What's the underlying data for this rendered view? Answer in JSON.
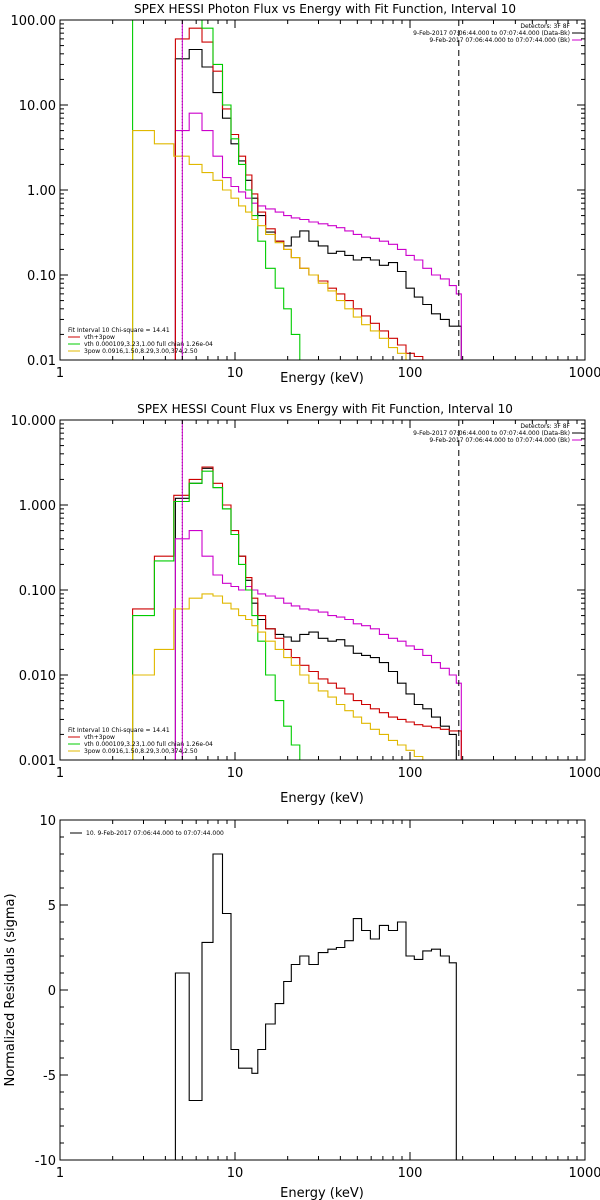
{
  "chart_data": [
    {
      "id": "photon",
      "type": "line",
      "title": "SPEX HESSI Photon Flux vs Energy with Fit Function, Interval 10",
      "xlabel": "Energy (keV)",
      "ylabel": "",
      "xscale": "log",
      "yscale": "log",
      "xlim": [
        1,
        1000
      ],
      "ylim": [
        0.01,
        100
      ],
      "xticks": [
        {
          "v": 1,
          "label": "1"
        },
        {
          "v": 10,
          "label": "10"
        },
        {
          "v": 100,
          "label": "100"
        },
        {
          "v": 1000,
          "label": "1000"
        }
      ],
      "yticks": [
        {
          "v": 0.01,
          "label": "0.01"
        },
        {
          "v": 0.1,
          "label": "0.10"
        },
        {
          "v": 1,
          "label": "1.00"
        },
        {
          "v": 10,
          "label": "10.00"
        },
        {
          "v": 100,
          "label": "100.00"
        }
      ],
      "vlines": [
        {
          "x": 5,
          "style": "dotted",
          "color": "#000000"
        },
        {
          "x": 5,
          "style": "solid",
          "color": "#cc00cc"
        },
        {
          "x": 190,
          "style": "dashed",
          "color": "#000000"
        }
      ],
      "info_top_right": [
        "Detectors: 3F 8F",
        "9-Feb-2017 07:06:44.000 to 07:07:44.000 (Data-Bk)",
        "9-Feb-2017 07:06:44.000 to 07:07:44.000 (Bk)"
      ],
      "info_bottom_left": [
        "Fit Interval 10   Chi-square = 14.41",
        "vth+3pow",
        "vth 0.000109,3.23,1.00  full chian 1.26e-04",
        "3pow 0.0916,1.50,8.29,3.00,374,2.50"
      ],
      "series": [
        {
          "name": "Data-Bk",
          "color": "#000000",
          "x": [
            5,
            6,
            7,
            8,
            9,
            10,
            11,
            12,
            13,
            14,
            16,
            18,
            20,
            22,
            25,
            28,
            32,
            36,
            40,
            45,
            50,
            56,
            63,
            71,
            80,
            90,
            100,
            112,
            125,
            141,
            158,
            178,
            190
          ],
          "y": [
            35,
            45,
            28,
            14,
            7,
            3.5,
            2.2,
            1.3,
            0.8,
            0.5,
            0.32,
            0.25,
            0.22,
            0.28,
            0.33,
            0.25,
            0.22,
            0.18,
            0.19,
            0.17,
            0.15,
            0.16,
            0.15,
            0.13,
            0.14,
            0.11,
            0.07,
            0.055,
            0.045,
            0.035,
            0.03,
            0.025,
            0.025
          ]
        },
        {
          "name": "Bk",
          "color": "#cc00cc",
          "x": [
            5,
            6,
            7,
            8,
            9,
            10,
            11,
            12,
            13,
            14,
            16,
            18,
            20,
            22,
            25,
            28,
            32,
            36,
            40,
            45,
            50,
            56,
            63,
            71,
            80,
            90,
            100,
            112,
            125,
            141,
            158,
            178,
            190
          ],
          "y": [
            5,
            8,
            5,
            2.5,
            1.4,
            1.1,
            0.95,
            0.8,
            0.7,
            0.65,
            0.6,
            0.55,
            0.5,
            0.47,
            0.45,
            0.42,
            0.4,
            0.38,
            0.36,
            0.33,
            0.3,
            0.28,
            0.27,
            0.25,
            0.23,
            0.2,
            0.17,
            0.15,
            0.12,
            0.1,
            0.09,
            0.075,
            0.06
          ]
        },
        {
          "name": "vth+3pow",
          "color": "#cc0000",
          "x": [
            5,
            6,
            7,
            8,
            9,
            10,
            11,
            12,
            13,
            14,
            16,
            18,
            20,
            22,
            25,
            28,
            32,
            36,
            40,
            45,
            50,
            56,
            63,
            71,
            80,
            90,
            100,
            112,
            125,
            141,
            158,
            178,
            190
          ],
          "y": [
            60,
            80,
            55,
            25,
            9,
            4.5,
            2.5,
            1.5,
            0.9,
            0.55,
            0.35,
            0.25,
            0.2,
            0.16,
            0.12,
            0.1,
            0.085,
            0.07,
            0.06,
            0.05,
            0.04,
            0.033,
            0.027,
            0.022,
            0.018,
            0.015,
            0.012,
            0.011,
            0.01,
            0.009,
            0.0085,
            0.008,
            0.008
          ]
        },
        {
          "name": "vth",
          "color": "#00cc00",
          "x": [
            3,
            4,
            5,
            6,
            7,
            8,
            9,
            10,
            11,
            12,
            13,
            14,
            16,
            18,
            20,
            22,
            25,
            28,
            32
          ],
          "y": [
            100,
            100,
            100,
            100,
            80,
            30,
            10,
            4,
            2,
            1,
            0.5,
            0.25,
            0.12,
            0.07,
            0.04,
            0.02,
            0.01,
            0.0095,
            0.009
          ]
        },
        {
          "name": "3pow",
          "color": "#e0b800",
          "x": [
            3,
            4,
            5,
            6,
            7,
            8,
            9,
            10,
            11,
            12,
            13,
            14,
            16,
            18,
            20,
            22,
            25,
            28,
            32,
            36,
            40,
            45,
            50,
            56,
            63,
            71,
            80,
            90,
            100
          ],
          "y": [
            5,
            3.5,
            2.5,
            2,
            1.6,
            1.3,
            1.0,
            0.8,
            0.65,
            0.55,
            0.45,
            0.38,
            0.3,
            0.24,
            0.2,
            0.16,
            0.12,
            0.1,
            0.08,
            0.065,
            0.05,
            0.04,
            0.032,
            0.026,
            0.022,
            0.018,
            0.014,
            0.012,
            0.01
          ]
        }
      ]
    },
    {
      "id": "count",
      "type": "line",
      "title": "SPEX HESSI Count Flux vs Energy with Fit Function, Interval 10",
      "xlabel": "Energy (keV)",
      "ylabel": "",
      "xscale": "log",
      "yscale": "log",
      "xlim": [
        1,
        1000
      ],
      "ylim": [
        0.001,
        10
      ],
      "xticks": [
        {
          "v": 1,
          "label": "1"
        },
        {
          "v": 10,
          "label": "10"
        },
        {
          "v": 100,
          "label": "100"
        },
        {
          "v": 1000,
          "label": "1000"
        }
      ],
      "yticks": [
        {
          "v": 0.001,
          "label": "0.001"
        },
        {
          "v": 0.01,
          "label": "0.010"
        },
        {
          "v": 0.1,
          "label": "0.100"
        },
        {
          "v": 1,
          "label": "1.000"
        },
        {
          "v": 10,
          "label": "10.000"
        }
      ],
      "vlines": [
        {
          "x": 5,
          "style": "dotted",
          "color": "#000000"
        },
        {
          "x": 5,
          "style": "solid",
          "color": "#cc00cc"
        },
        {
          "x": 190,
          "style": "dashed",
          "color": "#000000"
        }
      ],
      "info_top_right": [
        "Detectors: 3F 8F",
        "9-Feb-2017 07:06:44.000 to 07:07:44.000 (Data-Bk)",
        "9-Feb-2017 07:06:44.000 to 07:07:44.000 (Bk)"
      ],
      "info_bottom_left": [
        "Fit Interval 10   Chi-square = 14.41",
        "vth+3pow",
        "vth 0.000109,3.23,1.00  full chian 1.26e-04",
        "3pow 0.0916,1.50,8.29,3.00,374,2.50"
      ],
      "series": [
        {
          "name": "Data-Bk",
          "color": "#000000",
          "x": [
            5,
            6,
            7,
            8,
            9,
            10,
            11,
            12,
            13,
            14,
            16,
            18,
            20,
            22,
            25,
            28,
            32,
            36,
            40,
            45,
            50,
            56,
            63,
            71,
            80,
            90,
            100,
            112,
            125,
            141,
            158,
            178,
            190
          ],
          "y": [
            1.2,
            1.8,
            2.7,
            1.6,
            0.9,
            0.45,
            0.25,
            0.13,
            0.07,
            0.045,
            0.035,
            0.03,
            0.028,
            0.025,
            0.03,
            0.032,
            0.027,
            0.025,
            0.026,
            0.022,
            0.018,
            0.017,
            0.016,
            0.014,
            0.011,
            0.008,
            0.006,
            0.0045,
            0.004,
            0.0032,
            0.0025,
            0.002,
            0.001
          ]
        },
        {
          "name": "Bk",
          "color": "#cc00cc",
          "x": [
            5,
            6,
            7,
            8,
            9,
            10,
            11,
            12,
            13,
            14,
            16,
            18,
            20,
            22,
            25,
            28,
            32,
            36,
            40,
            45,
            50,
            56,
            63,
            71,
            80,
            90,
            100,
            112,
            125,
            141,
            158,
            178,
            190
          ],
          "y": [
            0.4,
            0.5,
            0.25,
            0.15,
            0.12,
            0.11,
            0.1,
            0.11,
            0.1,
            0.09,
            0.085,
            0.08,
            0.07,
            0.065,
            0.06,
            0.058,
            0.055,
            0.05,
            0.048,
            0.045,
            0.04,
            0.038,
            0.035,
            0.03,
            0.027,
            0.025,
            0.022,
            0.02,
            0.017,
            0.014,
            0.012,
            0.01,
            0.008
          ]
        },
        {
          "name": "vth+3pow",
          "color": "#cc0000",
          "x": [
            3,
            4,
            5,
            6,
            7,
            8,
            9,
            10,
            11,
            12,
            13,
            14,
            16,
            18,
            20,
            22,
            25,
            28,
            32,
            36,
            40,
            45,
            50,
            56,
            63,
            71,
            80,
            90,
            100,
            112,
            125,
            141,
            158,
            178,
            190
          ],
          "y": [
            0.06,
            0.25,
            1.3,
            2.0,
            2.8,
            1.8,
            1.0,
            0.5,
            0.25,
            0.14,
            0.08,
            0.05,
            0.035,
            0.027,
            0.02,
            0.016,
            0.013,
            0.011,
            0.009,
            0.008,
            0.007,
            0.006,
            0.005,
            0.0045,
            0.004,
            0.0036,
            0.0032,
            0.003,
            0.0028,
            0.0026,
            0.0025,
            0.0024,
            0.0023,
            0.0022,
            0.0022
          ]
        },
        {
          "name": "vth",
          "color": "#00cc00",
          "x": [
            3,
            4,
            5,
            6,
            7,
            8,
            9,
            10,
            11,
            12,
            13,
            14,
            16,
            18,
            20,
            22,
            25,
            28,
            32
          ],
          "y": [
            0.05,
            0.22,
            1.1,
            1.8,
            2.5,
            1.6,
            0.9,
            0.45,
            0.2,
            0.1,
            0.05,
            0.025,
            0.01,
            0.005,
            0.0025,
            0.0015,
            0.001,
            0.00095,
            0.0009
          ]
        },
        {
          "name": "3pow",
          "color": "#e0b800",
          "x": [
            3,
            4,
            5,
            6,
            7,
            8,
            9,
            10,
            11,
            12,
            13,
            14,
            16,
            18,
            20,
            22,
            25,
            28,
            32,
            36,
            40,
            45,
            50,
            56,
            63,
            71,
            80,
            90,
            100,
            112,
            125
          ],
          "y": [
            0.01,
            0.02,
            0.06,
            0.08,
            0.09,
            0.085,
            0.07,
            0.06,
            0.05,
            0.045,
            0.038,
            0.032,
            0.025,
            0.02,
            0.016,
            0.013,
            0.01,
            0.008,
            0.0065,
            0.0055,
            0.0045,
            0.0038,
            0.0032,
            0.0027,
            0.0023,
            0.002,
            0.0017,
            0.0015,
            0.0013,
            0.0011,
            0.001
          ]
        }
      ]
    },
    {
      "id": "residuals",
      "type": "line",
      "title": "",
      "xlabel": "Energy (keV)",
      "ylabel": "Normalized Residuals (sigma)",
      "xscale": "log",
      "yscale": "linear",
      "xlim": [
        1,
        1000
      ],
      "ylim": [
        -10,
        10
      ],
      "xticks": [
        {
          "v": 1,
          "label": "1"
        },
        {
          "v": 10,
          "label": "10"
        },
        {
          "v": 100,
          "label": "100"
        },
        {
          "v": 1000,
          "label": "1000"
        }
      ],
      "yticks": [
        {
          "v": -10,
          "label": "-10"
        },
        {
          "v": -5,
          "label": "-5"
        },
        {
          "v": 0,
          "label": "0"
        },
        {
          "v": 5,
          "label": "5"
        },
        {
          "v": 10,
          "label": "10"
        }
      ],
      "legend_label": "10.  9-Feb-2017 07:06:44.000 to 07:07:44.000",
      "series": [
        {
          "name": "",
          "color": "#000000",
          "x": [
            5,
            6,
            7,
            8,
            9,
            10,
            11,
            12,
            13,
            14,
            16,
            18,
            20,
            22,
            25,
            28,
            32,
            36,
            40,
            45,
            50,
            56,
            63,
            71,
            80,
            90,
            100,
            112,
            125,
            141,
            158,
            178,
            190
          ],
          "y": [
            1,
            -6.5,
            2.8,
            8,
            4.5,
            -3.5,
            -4.6,
            -4.6,
            -4.9,
            -3.5,
            -2,
            -0.8,
            0.5,
            1.5,
            2,
            1.5,
            2.2,
            2.4,
            2.5,
            2.9,
            4.2,
            3.5,
            3,
            3.8,
            3.5,
            4,
            2,
            1.8,
            2.3,
            2.4,
            2,
            1.6,
            -10
          ]
        }
      ]
    }
  ]
}
